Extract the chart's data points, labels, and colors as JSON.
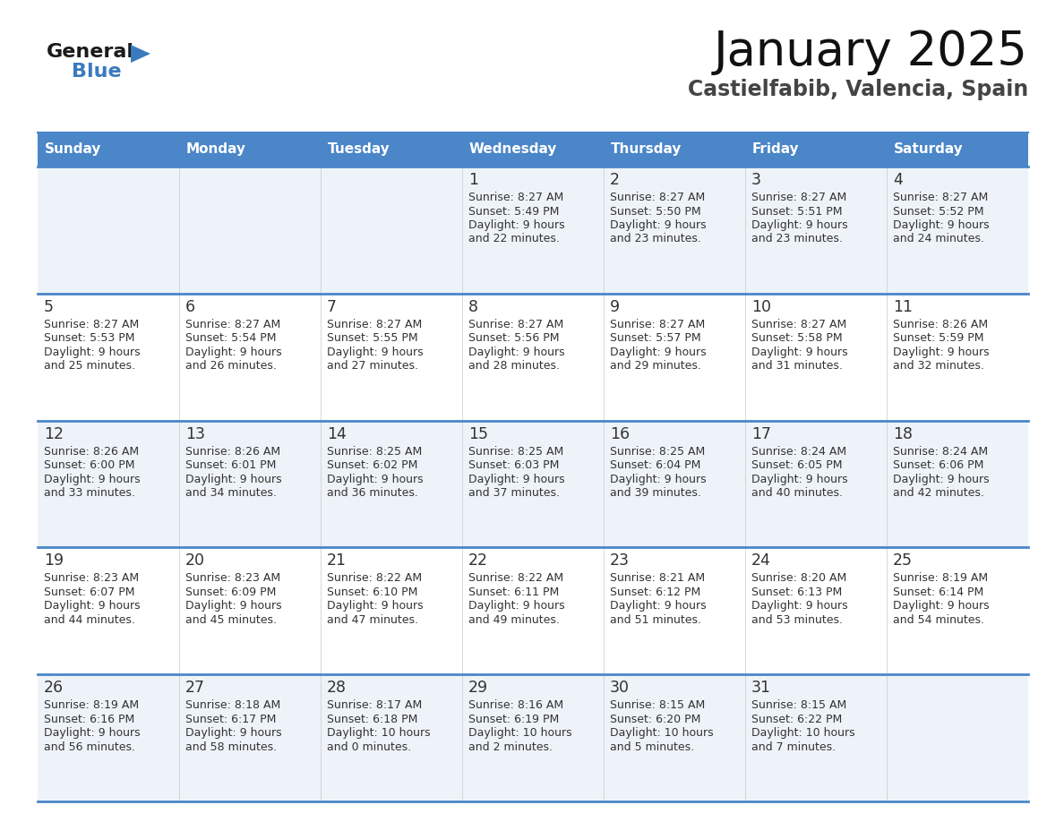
{
  "title": "January 2025",
  "subtitle": "Castielfabib, Valencia, Spain",
  "header_color": "#4a86c8",
  "header_text_color": "#ffffff",
  "border_color": "#4a86c8",
  "text_color": "#333333",
  "days_of_week": [
    "Sunday",
    "Monday",
    "Tuesday",
    "Wednesday",
    "Thursday",
    "Friday",
    "Saturday"
  ],
  "calendar_data": [
    [
      {
        "day": "",
        "sunrise": "",
        "sunset": "",
        "daylight": ""
      },
      {
        "day": "",
        "sunrise": "",
        "sunset": "",
        "daylight": ""
      },
      {
        "day": "",
        "sunrise": "",
        "sunset": "",
        "daylight": ""
      },
      {
        "day": "1",
        "sunrise": "8:27 AM",
        "sunset": "5:49 PM",
        "daylight": "9 hours and 22 minutes."
      },
      {
        "day": "2",
        "sunrise": "8:27 AM",
        "sunset": "5:50 PM",
        "daylight": "9 hours and 23 minutes."
      },
      {
        "day": "3",
        "sunrise": "8:27 AM",
        "sunset": "5:51 PM",
        "daylight": "9 hours and 23 minutes."
      },
      {
        "day": "4",
        "sunrise": "8:27 AM",
        "sunset": "5:52 PM",
        "daylight": "9 hours and 24 minutes."
      }
    ],
    [
      {
        "day": "5",
        "sunrise": "8:27 AM",
        "sunset": "5:53 PM",
        "daylight": "9 hours and 25 minutes."
      },
      {
        "day": "6",
        "sunrise": "8:27 AM",
        "sunset": "5:54 PM",
        "daylight": "9 hours and 26 minutes."
      },
      {
        "day": "7",
        "sunrise": "8:27 AM",
        "sunset": "5:55 PM",
        "daylight": "9 hours and 27 minutes."
      },
      {
        "day": "8",
        "sunrise": "8:27 AM",
        "sunset": "5:56 PM",
        "daylight": "9 hours and 28 minutes."
      },
      {
        "day": "9",
        "sunrise": "8:27 AM",
        "sunset": "5:57 PM",
        "daylight": "9 hours and 29 minutes."
      },
      {
        "day": "10",
        "sunrise": "8:27 AM",
        "sunset": "5:58 PM",
        "daylight": "9 hours and 31 minutes."
      },
      {
        "day": "11",
        "sunrise": "8:26 AM",
        "sunset": "5:59 PM",
        "daylight": "9 hours and 32 minutes."
      }
    ],
    [
      {
        "day": "12",
        "sunrise": "8:26 AM",
        "sunset": "6:00 PM",
        "daylight": "9 hours and 33 minutes."
      },
      {
        "day": "13",
        "sunrise": "8:26 AM",
        "sunset": "6:01 PM",
        "daylight": "9 hours and 34 minutes."
      },
      {
        "day": "14",
        "sunrise": "8:25 AM",
        "sunset": "6:02 PM",
        "daylight": "9 hours and 36 minutes."
      },
      {
        "day": "15",
        "sunrise": "8:25 AM",
        "sunset": "6:03 PM",
        "daylight": "9 hours and 37 minutes."
      },
      {
        "day": "16",
        "sunrise": "8:25 AM",
        "sunset": "6:04 PM",
        "daylight": "9 hours and 39 minutes."
      },
      {
        "day": "17",
        "sunrise": "8:24 AM",
        "sunset": "6:05 PM",
        "daylight": "9 hours and 40 minutes."
      },
      {
        "day": "18",
        "sunrise": "8:24 AM",
        "sunset": "6:06 PM",
        "daylight": "9 hours and 42 minutes."
      }
    ],
    [
      {
        "day": "19",
        "sunrise": "8:23 AM",
        "sunset": "6:07 PM",
        "daylight": "9 hours and 44 minutes."
      },
      {
        "day": "20",
        "sunrise": "8:23 AM",
        "sunset": "6:09 PM",
        "daylight": "9 hours and 45 minutes."
      },
      {
        "day": "21",
        "sunrise": "8:22 AM",
        "sunset": "6:10 PM",
        "daylight": "9 hours and 47 minutes."
      },
      {
        "day": "22",
        "sunrise": "8:22 AM",
        "sunset": "6:11 PM",
        "daylight": "9 hours and 49 minutes."
      },
      {
        "day": "23",
        "sunrise": "8:21 AM",
        "sunset": "6:12 PM",
        "daylight": "9 hours and 51 minutes."
      },
      {
        "day": "24",
        "sunrise": "8:20 AM",
        "sunset": "6:13 PM",
        "daylight": "9 hours and 53 minutes."
      },
      {
        "day": "25",
        "sunrise": "8:19 AM",
        "sunset": "6:14 PM",
        "daylight": "9 hours and 54 minutes."
      }
    ],
    [
      {
        "day": "26",
        "sunrise": "8:19 AM",
        "sunset": "6:16 PM",
        "daylight": "9 hours and 56 minutes."
      },
      {
        "day": "27",
        "sunrise": "8:18 AM",
        "sunset": "6:17 PM",
        "daylight": "9 hours and 58 minutes."
      },
      {
        "day": "28",
        "sunrise": "8:17 AM",
        "sunset": "6:18 PM",
        "daylight": "10 hours and 0 minutes."
      },
      {
        "day": "29",
        "sunrise": "8:16 AM",
        "sunset": "6:19 PM",
        "daylight": "10 hours and 2 minutes."
      },
      {
        "day": "30",
        "sunrise": "8:15 AM",
        "sunset": "6:20 PM",
        "daylight": "10 hours and 5 minutes."
      },
      {
        "day": "31",
        "sunrise": "8:15 AM",
        "sunset": "6:22 PM",
        "daylight": "10 hours and 7 minutes."
      },
      {
        "day": "",
        "sunrise": "",
        "sunset": "",
        "daylight": ""
      }
    ]
  ],
  "logo_text_general": "General",
  "logo_text_blue": "Blue",
  "logo_color_general": "#1a1a1a",
  "logo_color_blue": "#3a7abf",
  "row_bg_odd": "#eef3f9",
  "row_bg_even": "#ffffff"
}
